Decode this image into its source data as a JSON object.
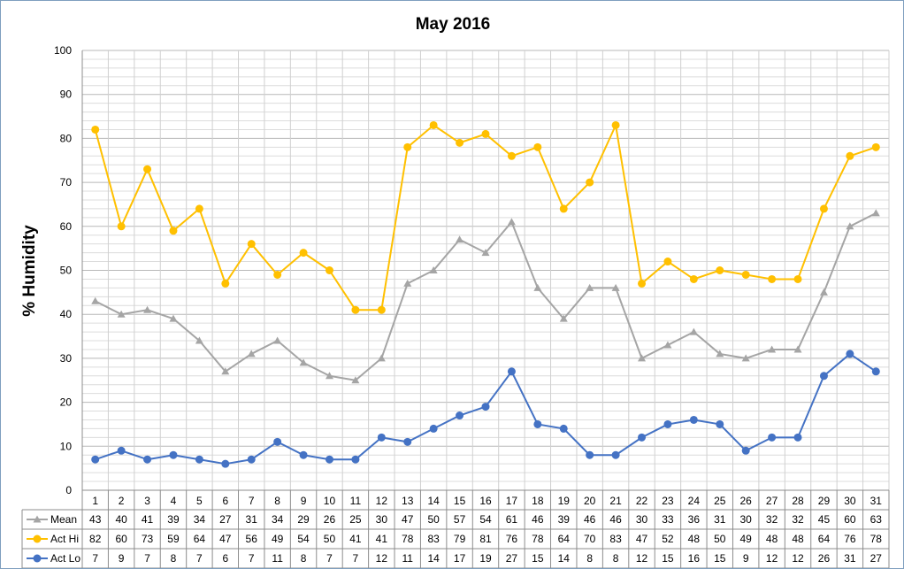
{
  "chart_data": {
    "type": "line",
    "title": "May 2016",
    "xlabel": "",
    "ylabel": "% Humidity",
    "ylim": [
      0,
      100
    ],
    "y_ticks": [
      0,
      10,
      20,
      30,
      40,
      50,
      60,
      70,
      80,
      90,
      100
    ],
    "grid": true,
    "legend": "bottom data table",
    "categories": [
      "1",
      "2",
      "3",
      "4",
      "5",
      "6",
      "7",
      "8",
      "9",
      "10",
      "11",
      "12",
      "13",
      "14",
      "15",
      "16",
      "17",
      "18",
      "19",
      "20",
      "21",
      "22",
      "23",
      "24",
      "25",
      "26",
      "27",
      "28",
      "29",
      "30",
      "31"
    ],
    "series": [
      {
        "name": "Mean",
        "color": "#a5a5a5",
        "marker": "triangle",
        "values": [
          43,
          40,
          41,
          39,
          34,
          27,
          31,
          34,
          29,
          26,
          25,
          30,
          47,
          50,
          57,
          54,
          61,
          46,
          39,
          46,
          46,
          30,
          33,
          36,
          31,
          30,
          32,
          32,
          45,
          60,
          63
        ]
      },
      {
        "name": "Act Hi",
        "color": "#ffc000",
        "marker": "circle",
        "values": [
          82,
          60,
          73,
          59,
          64,
          47,
          56,
          49,
          54,
          50,
          41,
          41,
          78,
          83,
          79,
          81,
          76,
          78,
          64,
          70,
          83,
          47,
          52,
          48,
          50,
          49,
          48,
          48,
          64,
          76,
          78
        ]
      },
      {
        "name": "Act Lo",
        "color": "#4472c4",
        "marker": "circle",
        "values": [
          7,
          9,
          7,
          8,
          7,
          6,
          7,
          11,
          8,
          7,
          7,
          12,
          11,
          14,
          17,
          19,
          27,
          15,
          14,
          8,
          8,
          12,
          15,
          16,
          15,
          9,
          12,
          12,
          26,
          31,
          27
        ]
      }
    ]
  }
}
